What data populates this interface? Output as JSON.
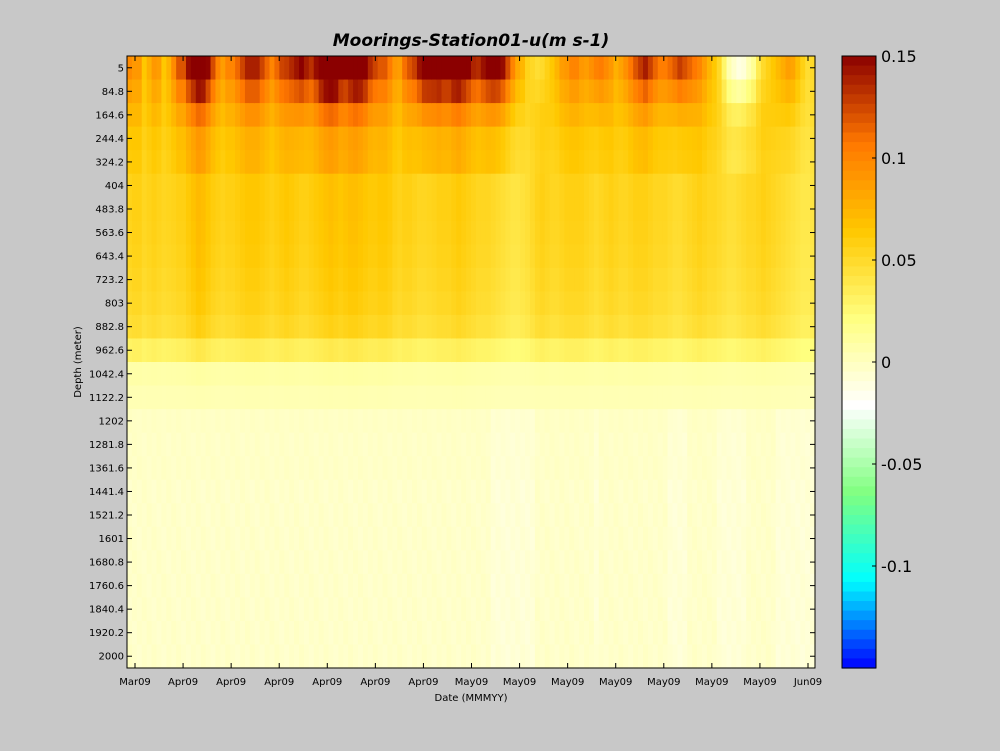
{
  "chart_data": {
    "type": "heatmap",
    "title": "Moorings-Station01-u(m s-1)",
    "xlabel": "Date (MMMYY)",
    "ylabel": "Depth (meter)",
    "x_tick_labels": [
      "Mar09",
      "Apr09",
      "Apr09",
      "Apr09",
      "Apr09",
      "Apr09",
      "Apr09",
      "May09",
      "May09",
      "May09",
      "May09",
      "May09",
      "May09",
      "May09",
      "Jun09"
    ],
    "y_tick_labels": [
      "5",
      "84.8",
      "164.6",
      "244.4",
      "324.2",
      "404",
      "483.8",
      "563.6",
      "643.4",
      "723.2",
      "803",
      "882.8",
      "962.6",
      "1042.4",
      "1122.2",
      "1202",
      "1281.8",
      "1361.6",
      "1441.4",
      "1521.2",
      "1601",
      "1680.8",
      "1760.6",
      "1840.4",
      "1920.2",
      "2000"
    ],
    "depth_range": [
      5,
      2000
    ],
    "color_range": [
      -0.15,
      0.15
    ],
    "colorbar_ticks": [
      "0.15",
      "0.1",
      "0.05",
      "0",
      "-0.05",
      "-0.1"
    ],
    "colorbar_tick_values": [
      0.15,
      0.1,
      0.05,
      0,
      -0.05,
      -0.1
    ],
    "colormap": [
      "#0000ff",
      "#00ffff",
      "#80ff80",
      "#ffffff",
      "#ffff80",
      "#ffc800",
      "#ff7800",
      "#8b0000"
    ],
    "depth_profile": [
      0.07,
      0.068,
      0.066,
      0.062,
      0.06,
      0.058,
      0.058,
      0.057,
      0.056,
      0.054,
      0.052,
      0.048,
      0.032,
      0.008,
      0.004,
      -0.002,
      -0.003,
      -0.003,
      -0.004,
      -0.004,
      -0.004,
      -0.004,
      -0.004,
      -0.004,
      -0.004,
      -0.004
    ],
    "time_factor": [
      0.9,
      1.0,
      1.0,
      0.8,
      0.9,
      1.0,
      0.9,
      0.8,
      0.85,
      0.9,
      1.0,
      1.0,
      1.2,
      1.4,
      1.6,
      1.5,
      1.3,
      1.1,
      1.0,
      0.9,
      1.0,
      1.0,
      1.1,
      1.2,
      1.3,
      1.3,
      1.3,
      1.2,
      1.1,
      1.0,
      1.1,
      1.2,
      1.3,
      1.2,
      1.1,
      1.0,
      1.0,
      1.1,
      1.2,
      1.3,
      1.4,
      1.5,
      1.4,
      1.3,
      1.4,
      1.5,
      1.5,
      1.4,
      1.3,
      1.2,
      1.2,
      1.3,
      1.3,
      1.2,
      1.0,
      0.9,
      1.0,
      1.0,
      0.9,
      0.8,
      0.8,
      0.85,
      0.9,
      1.0,
      1.0,
      1.0,
      1.1,
      1.2,
      1.1,
      1.0,
      0.9,
      0.8,
      0.8,
      0.8,
      0.7,
      0.6,
      0.5,
      0.4,
      0.3,
      0.3,
      0.4,
      0.5,
      0.7,
      0.9,
      1.0,
      0.9,
      0.8,
      0.8,
      0.9,
      1.0,
      1.0,
      1.0,
      1.0,
      0.9,
      0.8,
      0.7,
      0.8,
      0.9,
      1.0,
      0.9,
      0.8,
      0.8,
      0.9,
      1.0,
      1.0,
      1.0,
      0.9,
      0.8,
      0.8,
      0.8,
      0.7,
      0.6,
      0.6,
      0.7,
      0.8,
      0.9,
      1.0,
      0.9,
      0.8,
      0.8,
      0.7,
      0.6,
      0.5,
      0.5,
      0.6,
      0.7,
      0.8,
      0.8,
      0.9,
      1.0,
      0.9,
      0.8,
      0.7,
      0.6,
      0.5,
      0.4,
      0.3,
      0.2,
      0.2,
      0.3
    ],
    "surface_extra": [
      0.03,
      0.02,
      0.02,
      0.0,
      0.01,
      0.02,
      0.02,
      0.0,
      0.01,
      0.03,
      0.05,
      0.05,
      0.07,
      0.08,
      0.09,
      0.09,
      0.07,
      0.05,
      0.03,
      0.02,
      0.03,
      0.03,
      0.04,
      0.05,
      0.06,
      0.06,
      0.06,
      0.05,
      0.04,
      0.03,
      0.04,
      0.05,
      0.05,
      0.06,
      0.07,
      0.08,
      0.07,
      0.06,
      0.07,
      0.09,
      0.1,
      0.1,
      0.1,
      0.08,
      0.07,
      0.08,
      0.09,
      0.09,
      0.08,
      0.06,
      0.05,
      0.04,
      0.04,
      0.03,
      0.02,
      0.02,
      0.04,
      0.05,
      0.06,
      0.08,
      0.1,
      0.1,
      0.1,
      0.1,
      0.09,
      0.09,
      0.1,
      0.1,
      0.09,
      0.08,
      0.07,
      0.07,
      0.08,
      0.09,
      0.1,
      0.1,
      0.09,
      0.07,
      0.05,
      0.03,
      0.02,
      0.0,
      -0.01,
      -0.02,
      -0.02,
      -0.01,
      0.0,
      0.01,
      0.02,
      0.02,
      0.03,
      0.03,
      0.02,
      0.02,
      0.03,
      0.04,
      0.04,
      0.03,
      0.02,
      0.01,
      0.02,
      0.03,
      0.04,
      0.05,
      0.06,
      0.07,
      0.06,
      0.05,
      0.04,
      0.04,
      0.05,
      0.06,
      0.07,
      0.06,
      0.05,
      0.04,
      0.03,
      0.02,
      0.01,
      0.0,
      -0.01,
      -0.03,
      -0.05,
      -0.06,
      -0.07,
      -0.07,
      -0.06,
      -0.05,
      -0.03,
      -0.02,
      -0.01,
      0.0,
      0.01,
      0.02,
      0.03,
      0.03,
      0.02,
      0.01,
      0.0,
      0.0
    ]
  }
}
